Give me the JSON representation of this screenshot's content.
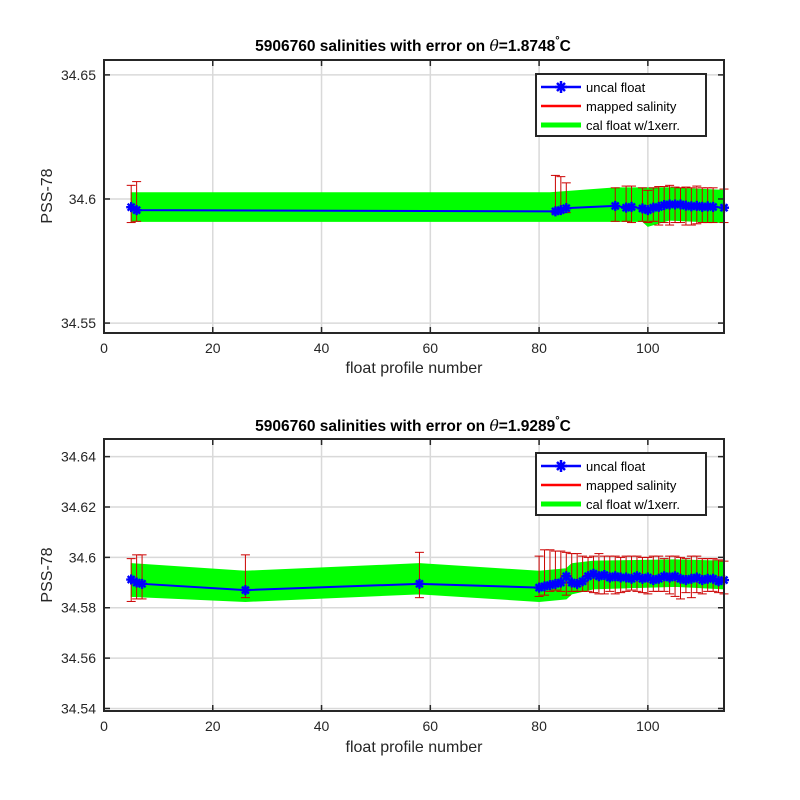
{
  "colors": {
    "uncal_float": "#0000ff",
    "mapped_salinity": "#ff0000",
    "cal_float_band": "#00ff00",
    "error_bar": "#cc0000",
    "grid": "#d9d9d9",
    "axes": "#262626"
  },
  "chart_data": [
    {
      "type": "line",
      "title_main": "5906760 salinities with error on ",
      "title_theta": "θ",
      "title_value": "=1.8748",
      "title_degree": "°",
      "title_unit": "C",
      "xlabel": "float profile number",
      "ylabel": "PSS-78",
      "xlim": [
        0,
        114
      ],
      "ylim": [
        34.546,
        34.656
      ],
      "xticks": [
        0,
        20,
        40,
        60,
        80,
        100
      ],
      "xtick_labels": [
        "0",
        "20",
        "40",
        "60",
        "80",
        "100"
      ],
      "yticks": [
        34.55,
        34.6,
        34.65
      ],
      "ytick_labels": [
        "34.55",
        "34.6",
        "34.65"
      ],
      "grid": true,
      "legend_position": "top-right",
      "legend": [
        "uncal float",
        "mapped salinity",
        "cal float w/1xerr."
      ],
      "cal_band": {
        "x": [
          5,
          82,
          94,
          99,
          100,
          104,
          114
        ],
        "upper": [
          34.6025,
          34.6025,
          34.6045,
          34.6045,
          34.6045,
          34.6045,
          34.6035
        ],
        "lower": [
          34.591,
          34.591,
          34.591,
          34.591,
          34.589,
          34.5915,
          34.5905
        ]
      },
      "series": [
        {
          "name": "uncal float",
          "x": [
            5,
            6,
            83,
            84,
            85,
            94,
            96,
            97,
            99,
            100,
            101,
            102,
            103,
            104,
            105,
            106,
            107,
            108,
            109,
            110,
            111,
            112,
            114
          ],
          "y": [
            34.5967,
            34.5955,
            34.595,
            34.5955,
            34.5963,
            34.5972,
            34.5965,
            34.5968,
            34.5962,
            34.5955,
            34.5965,
            34.5968,
            34.5975,
            34.5978,
            34.5978,
            34.5978,
            34.5973,
            34.597,
            34.5972,
            34.5968,
            34.597,
            34.5968,
            34.5965
          ],
          "err_upper": [
            34.6055,
            34.607,
            34.6095,
            34.609,
            34.6065,
            34.6045,
            34.6052,
            34.6052,
            34.6045,
            34.6035,
            34.6045,
            34.605,
            34.605,
            34.6055,
            34.6048,
            34.6045,
            34.6048,
            34.6045,
            34.6052,
            34.6045,
            34.6045,
            34.6045,
            34.604
          ],
          "err_lower": [
            34.5905,
            34.591,
            34.5945,
            34.5945,
            34.5945,
            34.591,
            34.591,
            34.5905,
            34.591,
            34.5905,
            34.591,
            34.5895,
            34.5905,
            34.5895,
            34.5905,
            34.5905,
            34.5895,
            34.5895,
            34.59,
            34.5905,
            34.5905,
            34.5905,
            34.5905
          ]
        }
      ]
    },
    {
      "type": "line",
      "title_main": "5906760 salinities with error on ",
      "title_theta": "θ",
      "title_value": "=1.9289",
      "title_degree": "°",
      "title_unit": "C",
      "xlabel": "float profile number",
      "ylabel": "PSS-78",
      "xlim": [
        0,
        114
      ],
      "ylim": [
        34.539,
        34.647
      ],
      "xticks": [
        0,
        20,
        40,
        60,
        80,
        100
      ],
      "xtick_labels": [
        "0",
        "20",
        "40",
        "60",
        "80",
        "100"
      ],
      "yticks": [
        34.54,
        34.56,
        34.58,
        34.6,
        34.62,
        34.64
      ],
      "ytick_labels": [
        "34.54",
        "34.56",
        "34.58",
        "34.6",
        "34.62",
        "34.64"
      ],
      "grid": true,
      "legend_position": "top-right",
      "legend": [
        "uncal float",
        "mapped salinity",
        "cal float w/1xerr."
      ],
      "cal_band": {
        "x": [
          5,
          26,
          58,
          80,
          85,
          86,
          90,
          105,
          114
        ],
        "upper": [
          34.5975,
          34.5945,
          34.5975,
          34.5945,
          34.5955,
          34.5975,
          34.5985,
          34.599,
          34.5985
        ],
        "lower": [
          34.5845,
          34.5825,
          34.5855,
          34.5825,
          34.5835,
          34.5855,
          34.5875,
          34.5885,
          34.5875
        ]
      },
      "series": [
        {
          "name": "uncal float",
          "x": [
            5,
            6,
            7,
            26,
            58,
            80,
            81,
            82,
            83,
            84,
            85,
            86,
            87,
            88,
            89,
            90,
            91,
            92,
            93,
            94,
            95,
            96,
            97,
            98,
            99,
            100,
            101,
            102,
            103,
            104,
            105,
            106,
            107,
            108,
            109,
            110,
            111,
            112,
            113,
            114
          ],
          "y": [
            34.5912,
            34.59,
            34.5895,
            34.587,
            34.5895,
            34.588,
            34.5885,
            34.589,
            34.5895,
            34.59,
            34.5925,
            34.59,
            34.5895,
            34.5905,
            34.5925,
            34.5935,
            34.5925,
            34.593,
            34.592,
            34.5925,
            34.592,
            34.592,
            34.5915,
            34.5925,
            34.5915,
            34.592,
            34.591,
            34.5915,
            34.5925,
            34.592,
            34.5925,
            34.5915,
            34.591,
            34.5915,
            34.592,
            34.591,
            34.5915,
            34.5915,
            34.5905,
            34.591
          ],
          "err_upper": [
            34.5995,
            34.601,
            34.601,
            34.601,
            34.602,
            34.6005,
            34.603,
            34.603,
            34.6025,
            34.6025,
            34.602,
            34.6015,
            34.6015,
            34.6005,
            34.6,
            34.6005,
            34.6015,
            34.6005,
            34.6005,
            34.6005,
            34.6,
            34.6005,
            34.6005,
            34.6005,
            34.6,
            34.6,
            34.6005,
            34.6005,
            34.5995,
            34.6005,
            34.6005,
            34.6,
            34.5995,
            34.6005,
            34.6005,
            34.5995,
            34.5995,
            34.5995,
            34.599,
            34.5985
          ],
          "err_lower": [
            34.5825,
            34.5835,
            34.5835,
            34.584,
            34.584,
            34.5845,
            34.585,
            34.5865,
            34.587,
            34.5865,
            34.585,
            34.5865,
            34.5865,
            34.5865,
            34.5865,
            34.586,
            34.5855,
            34.5855,
            34.5865,
            34.5855,
            34.586,
            34.5865,
            34.587,
            34.5865,
            34.586,
            34.5855,
            34.5865,
            34.5865,
            34.5865,
            34.5855,
            34.5845,
            34.5835,
            34.586,
            34.584,
            34.586,
            34.5855,
            34.5865,
            34.5865,
            34.586,
            34.5855
          ]
        }
      ]
    }
  ]
}
